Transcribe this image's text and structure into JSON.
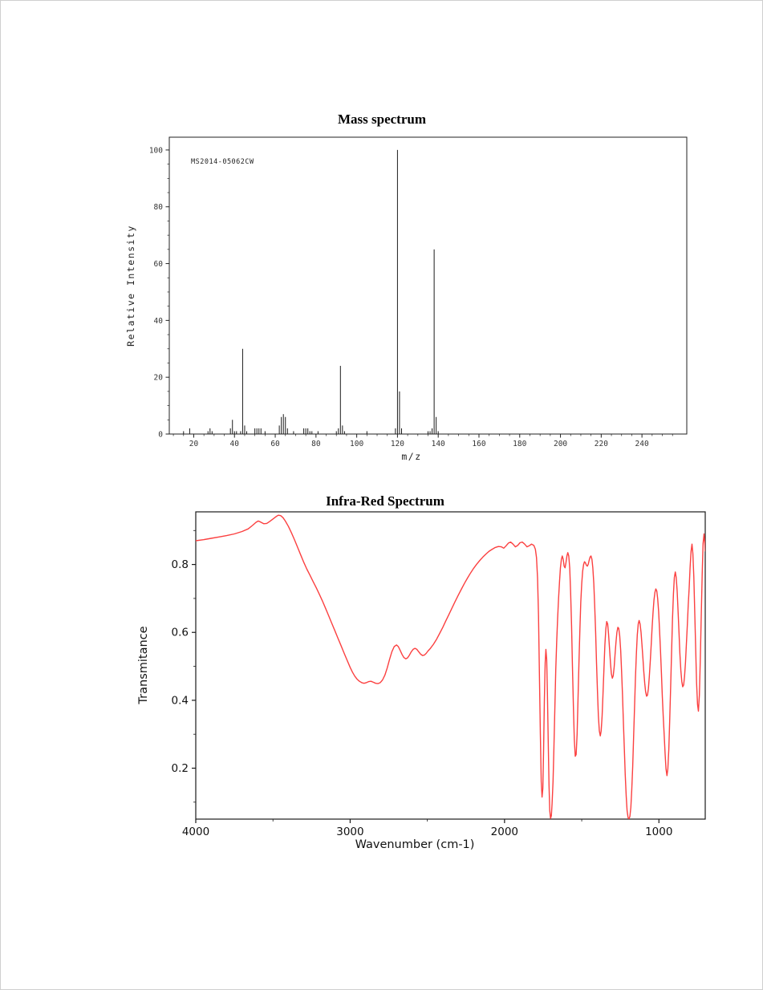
{
  "page": {
    "background": "#ffffff",
    "border_color": "#cfcfcf"
  },
  "chart_data": [
    {
      "type": "bar",
      "id": "mass_spectrum",
      "title": "Mass spectrum",
      "annotation": "MS2014-05062CW",
      "xlabel": "m/z",
      "ylabel": "Relative Intensity",
      "xlim": [
        8,
        262
      ],
      "ylim": [
        0,
        104.5
      ],
      "x_ticks": [
        20,
        40,
        60,
        80,
        100,
        120,
        140,
        160,
        180,
        200,
        220,
        240
      ],
      "x_minor_step": 5,
      "y_ticks": [
        0,
        20,
        40,
        60,
        80,
        100
      ],
      "y_minor_step": 5,
      "bar_color": "#1b1b1b",
      "axis_color": "#222222",
      "grid": false,
      "peaks": [
        [
          15,
          1
        ],
        [
          18,
          2
        ],
        [
          27,
          1
        ],
        [
          28,
          2
        ],
        [
          29,
          1
        ],
        [
          38,
          2
        ],
        [
          39,
          5
        ],
        [
          40,
          1
        ],
        [
          41,
          1
        ],
        [
          43,
          1
        ],
        [
          44,
          30
        ],
        [
          45,
          3
        ],
        [
          46,
          1
        ],
        [
          50,
          2
        ],
        [
          51,
          2
        ],
        [
          52,
          2
        ],
        [
          53,
          2
        ],
        [
          55,
          1
        ],
        [
          62,
          3
        ],
        [
          63,
          6
        ],
        [
          64,
          7
        ],
        [
          65,
          6
        ],
        [
          66,
          2
        ],
        [
          69,
          1
        ],
        [
          74,
          2
        ],
        [
          75,
          2
        ],
        [
          76,
          2
        ],
        [
          77,
          1
        ],
        [
          78,
          1
        ],
        [
          81,
          1
        ],
        [
          90,
          1
        ],
        [
          91,
          2
        ],
        [
          92,
          24
        ],
        [
          93,
          3
        ],
        [
          94,
          1
        ],
        [
          105,
          1
        ],
        [
          119,
          2
        ],
        [
          120,
          100
        ],
        [
          121,
          15
        ],
        [
          122,
          2
        ],
        [
          135,
          1
        ],
        [
          136,
          1
        ],
        [
          137,
          2
        ],
        [
          138,
          65
        ],
        [
          139,
          6
        ],
        [
          140,
          1
        ]
      ]
    },
    {
      "type": "line",
      "id": "ir_spectrum",
      "title": "Infra-Red Spectrum",
      "xlabel": "Wavenumber (cm-1)",
      "ylabel": "Transmitance",
      "xlim": [
        4000,
        700
      ],
      "x_axis_reversed": true,
      "ylim": [
        0.05,
        0.955
      ],
      "x_ticks": [
        4000,
        3000,
        2000,
        1000
      ],
      "x_minor_step": 500,
      "y_ticks": [
        0.2,
        0.4,
        0.6,
        0.8
      ],
      "y_minor_step": 0.1,
      "line_color": "#fb4040",
      "axis_color": "#1a1a1a",
      "grid": false,
      "points": [
        [
          4000,
          0.87
        ],
        [
          3950,
          0.873
        ],
        [
          3900,
          0.877
        ],
        [
          3850,
          0.881
        ],
        [
          3800,
          0.885
        ],
        [
          3750,
          0.89
        ],
        [
          3700,
          0.897
        ],
        [
          3660,
          0.905
        ],
        [
          3630,
          0.916
        ],
        [
          3610,
          0.924
        ],
        [
          3595,
          0.928
        ],
        [
          3580,
          0.925
        ],
        [
          3560,
          0.92
        ],
        [
          3540,
          0.921
        ],
        [
          3520,
          0.927
        ],
        [
          3500,
          0.934
        ],
        [
          3480,
          0.941
        ],
        [
          3465,
          0.945
        ],
        [
          3450,
          0.944
        ],
        [
          3435,
          0.938
        ],
        [
          3420,
          0.928
        ],
        [
          3400,
          0.912
        ],
        [
          3380,
          0.893
        ],
        [
          3360,
          0.872
        ],
        [
          3340,
          0.85
        ],
        [
          3320,
          0.828
        ],
        [
          3300,
          0.806
        ],
        [
          3280,
          0.786
        ],
        [
          3260,
          0.768
        ],
        [
          3240,
          0.75
        ],
        [
          3220,
          0.732
        ],
        [
          3200,
          0.713
        ],
        [
          3180,
          0.693
        ],
        [
          3160,
          0.672
        ],
        [
          3140,
          0.65
        ],
        [
          3120,
          0.628
        ],
        [
          3100,
          0.606
        ],
        [
          3080,
          0.584
        ],
        [
          3060,
          0.562
        ],
        [
          3040,
          0.54
        ],
        [
          3020,
          0.518
        ],
        [
          3000,
          0.497
        ],
        [
          2985,
          0.483
        ],
        [
          2970,
          0.471
        ],
        [
          2955,
          0.462
        ],
        [
          2940,
          0.456
        ],
        [
          2925,
          0.452
        ],
        [
          2910,
          0.45
        ],
        [
          2895,
          0.452
        ],
        [
          2880,
          0.455
        ],
        [
          2865,
          0.456
        ],
        [
          2850,
          0.453
        ],
        [
          2835,
          0.45
        ],
        [
          2820,
          0.449
        ],
        [
          2805,
          0.452
        ],
        [
          2790,
          0.46
        ],
        [
          2775,
          0.474
        ],
        [
          2760,
          0.495
        ],
        [
          2745,
          0.52
        ],
        [
          2730,
          0.543
        ],
        [
          2715,
          0.558
        ],
        [
          2700,
          0.563
        ],
        [
          2688,
          0.558
        ],
        [
          2676,
          0.547
        ],
        [
          2664,
          0.535
        ],
        [
          2652,
          0.526
        ],
        [
          2640,
          0.522
        ],
        [
          2628,
          0.525
        ],
        [
          2616,
          0.533
        ],
        [
          2604,
          0.543
        ],
        [
          2592,
          0.55
        ],
        [
          2580,
          0.553
        ],
        [
          2568,
          0.55
        ],
        [
          2556,
          0.543
        ],
        [
          2544,
          0.536
        ],
        [
          2532,
          0.532
        ],
        [
          2520,
          0.533
        ],
        [
          2508,
          0.538
        ],
        [
          2496,
          0.545
        ],
        [
          2480,
          0.553
        ],
        [
          2460,
          0.565
        ],
        [
          2440,
          0.58
        ],
        [
          2420,
          0.597
        ],
        [
          2400,
          0.615
        ],
        [
          2380,
          0.634
        ],
        [
          2360,
          0.653
        ],
        [
          2340,
          0.672
        ],
        [
          2320,
          0.691
        ],
        [
          2300,
          0.709
        ],
        [
          2280,
          0.727
        ],
        [
          2260,
          0.744
        ],
        [
          2240,
          0.76
        ],
        [
          2220,
          0.775
        ],
        [
          2200,
          0.789
        ],
        [
          2180,
          0.801
        ],
        [
          2160,
          0.812
        ],
        [
          2140,
          0.822
        ],
        [
          2120,
          0.831
        ],
        [
          2100,
          0.839
        ],
        [
          2080,
          0.845
        ],
        [
          2060,
          0.85
        ],
        [
          2040,
          0.853
        ],
        [
          2020,
          0.852
        ],
        [
          2005,
          0.848
        ],
        [
          1990,
          0.855
        ],
        [
          1975,
          0.863
        ],
        [
          1960,
          0.866
        ],
        [
          1945,
          0.86
        ],
        [
          1930,
          0.852
        ],
        [
          1915,
          0.856
        ],
        [
          1900,
          0.864
        ],
        [
          1885,
          0.866
        ],
        [
          1870,
          0.86
        ],
        [
          1855,
          0.852
        ],
        [
          1840,
          0.855
        ],
        [
          1825,
          0.86
        ],
        [
          1810,
          0.856
        ],
        [
          1800,
          0.845
        ],
        [
          1793,
          0.82
        ],
        [
          1786,
          0.76
        ],
        [
          1780,
          0.65
        ],
        [
          1774,
          0.48
        ],
        [
          1768,
          0.3
        ],
        [
          1762,
          0.16
        ],
        [
          1757,
          0.115
        ],
        [
          1752,
          0.14
        ],
        [
          1747,
          0.25
        ],
        [
          1742,
          0.4
        ],
        [
          1737,
          0.51
        ],
        [
          1732,
          0.55
        ],
        [
          1727,
          0.52
        ],
        [
          1722,
          0.42
        ],
        [
          1717,
          0.28
        ],
        [
          1712,
          0.15
        ],
        [
          1707,
          0.075
        ],
        [
          1702,
          0.052
        ],
        [
          1697,
          0.06
        ],
        [
          1692,
          0.095
        ],
        [
          1686,
          0.16
        ],
        [
          1680,
          0.26
        ],
        [
          1674,
          0.38
        ],
        [
          1668,
          0.49
        ],
        [
          1662,
          0.575
        ],
        [
          1656,
          0.64
        ],
        [
          1650,
          0.7
        ],
        [
          1644,
          0.75
        ],
        [
          1638,
          0.79
        ],
        [
          1632,
          0.815
        ],
        [
          1626,
          0.825
        ],
        [
          1620,
          0.815
        ],
        [
          1614,
          0.795
        ],
        [
          1608,
          0.79
        ],
        [
          1602,
          0.805
        ],
        [
          1596,
          0.825
        ],
        [
          1590,
          0.835
        ],
        [
          1584,
          0.825
        ],
        [
          1578,
          0.79
        ],
        [
          1572,
          0.72
        ],
        [
          1566,
          0.62
        ],
        [
          1560,
          0.5
        ],
        [
          1554,
          0.38
        ],
        [
          1548,
          0.285
        ],
        [
          1542,
          0.235
        ],
        [
          1536,
          0.24
        ],
        [
          1530,
          0.3
        ],
        [
          1524,
          0.4
        ],
        [
          1518,
          0.51
        ],
        [
          1512,
          0.61
        ],
        [
          1506,
          0.69
        ],
        [
          1500,
          0.745
        ],
        [
          1494,
          0.78
        ],
        [
          1488,
          0.8
        ],
        [
          1482,
          0.808
        ],
        [
          1476,
          0.805
        ],
        [
          1470,
          0.798
        ],
        [
          1464,
          0.795
        ],
        [
          1458,
          0.8
        ],
        [
          1452,
          0.812
        ],
        [
          1446,
          0.822
        ],
        [
          1440,
          0.825
        ],
        [
          1434,
          0.815
        ],
        [
          1428,
          0.79
        ],
        [
          1422,
          0.745
        ],
        [
          1416,
          0.68
        ],
        [
          1410,
          0.6
        ],
        [
          1404,
          0.51
        ],
        [
          1398,
          0.425
        ],
        [
          1392,
          0.355
        ],
        [
          1386,
          0.31
        ],
        [
          1380,
          0.295
        ],
        [
          1374,
          0.31
        ],
        [
          1368,
          0.355
        ],
        [
          1362,
          0.42
        ],
        [
          1356,
          0.495
        ],
        [
          1350,
          0.562
        ],
        [
          1344,
          0.61
        ],
        [
          1338,
          0.632
        ],
        [
          1332,
          0.625
        ],
        [
          1326,
          0.595
        ],
        [
          1320,
          0.553
        ],
        [
          1314,
          0.51
        ],
        [
          1308,
          0.478
        ],
        [
          1302,
          0.465
        ],
        [
          1296,
          0.472
        ],
        [
          1290,
          0.498
        ],
        [
          1284,
          0.535
        ],
        [
          1278,
          0.572
        ],
        [
          1272,
          0.6
        ],
        [
          1266,
          0.615
        ],
        [
          1260,
          0.612
        ],
        [
          1254,
          0.59
        ],
        [
          1248,
          0.548
        ],
        [
          1242,
          0.488
        ],
        [
          1236,
          0.415
        ],
        [
          1230,
          0.335
        ],
        [
          1224,
          0.255
        ],
        [
          1218,
          0.18
        ],
        [
          1212,
          0.118
        ],
        [
          1206,
          0.075
        ],
        [
          1200,
          0.055
        ],
        [
          1194,
          0.05
        ],
        [
          1188,
          0.058
        ],
        [
          1182,
          0.085
        ],
        [
          1176,
          0.135
        ],
        [
          1170,
          0.205
        ],
        [
          1164,
          0.29
        ],
        [
          1158,
          0.38
        ],
        [
          1152,
          0.465
        ],
        [
          1146,
          0.538
        ],
        [
          1140,
          0.592
        ],
        [
          1134,
          0.625
        ],
        [
          1128,
          0.635
        ],
        [
          1122,
          0.625
        ],
        [
          1116,
          0.6
        ],
        [
          1110,
          0.565
        ],
        [
          1104,
          0.525
        ],
        [
          1098,
          0.485
        ],
        [
          1092,
          0.45
        ],
        [
          1086,
          0.425
        ],
        [
          1080,
          0.412
        ],
        [
          1074,
          0.415
        ],
        [
          1068,
          0.435
        ],
        [
          1062,
          0.47
        ],
        [
          1056,
          0.515
        ],
        [
          1050,
          0.565
        ],
        [
          1044,
          0.615
        ],
        [
          1038,
          0.66
        ],
        [
          1032,
          0.695
        ],
        [
          1026,
          0.718
        ],
        [
          1020,
          0.728
        ],
        [
          1014,
          0.722
        ],
        [
          1008,
          0.7
        ],
        [
          1002,
          0.662
        ],
        [
          996,
          0.61
        ],
        [
          990,
          0.548
        ],
        [
          984,
          0.48
        ],
        [
          978,
          0.412
        ],
        [
          972,
          0.35
        ],
        [
          966,
          0.3
        ],
        [
          960,
          0.242
        ],
        [
          954,
          0.198
        ],
        [
          948,
          0.178
        ],
        [
          942,
          0.198
        ],
        [
          936,
          0.255
        ],
        [
          930,
          0.34
        ],
        [
          924,
          0.44
        ],
        [
          918,
          0.545
        ],
        [
          912,
          0.64
        ],
        [
          906,
          0.715
        ],
        [
          900,
          0.762
        ],
        [
          894,
          0.778
        ],
        [
          888,
          0.762
        ],
        [
          882,
          0.722
        ],
        [
          876,
          0.665
        ],
        [
          870,
          0.6
        ],
        [
          864,
          0.538
        ],
        [
          858,
          0.488
        ],
        [
          852,
          0.455
        ],
        [
          846,
          0.44
        ],
        [
          840,
          0.445
        ],
        [
          834,
          0.47
        ],
        [
          828,
          0.512
        ],
        [
          822,
          0.565
        ],
        [
          816,
          0.622
        ],
        [
          810,
          0.68
        ],
        [
          804,
          0.732
        ],
        [
          798,
          0.79
        ],
        [
          792,
          0.838
        ],
        [
          786,
          0.86
        ],
        [
          780,
          0.832
        ],
        [
          774,
          0.762
        ],
        [
          768,
          0.662
        ],
        [
          762,
          0.552
        ],
        [
          756,
          0.452
        ],
        [
          750,
          0.388
        ],
        [
          744,
          0.368
        ],
        [
          738,
          0.415
        ],
        [
          732,
          0.515
        ],
        [
          726,
          0.645
        ],
        [
          720,
          0.77
        ],
        [
          714,
          0.862
        ],
        [
          708,
          0.89
        ],
        [
          702,
          0.858
        ],
        [
          700,
          0.84
        ]
      ]
    }
  ]
}
